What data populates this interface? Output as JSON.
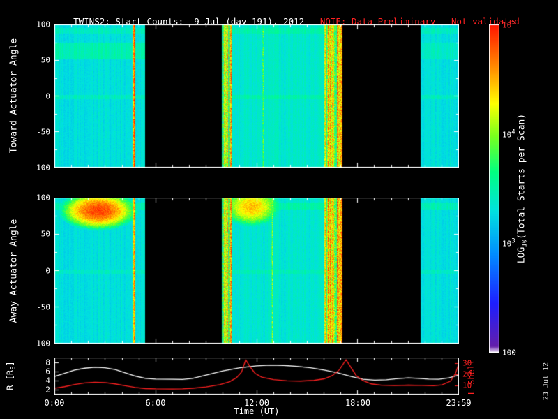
{
  "title": {
    "main": "TWINS2: Start Counts:  9 Jul (day 191), 2012   ",
    "note": "NOTE: Data Preliminary - Not validated",
    "note_color": "#ff2121"
  },
  "time_axis": {
    "label": "Time (UT)",
    "range_hours": [
      0,
      24
    ],
    "ticks": [
      {
        "hour": 0,
        "label": "0:00"
      },
      {
        "hour": 6,
        "label": "6:00"
      },
      {
        "hour": 12,
        "label": "12:00"
      },
      {
        "hour": 18,
        "label": "18:00"
      },
      {
        "hour": 23.983,
        "label": "23:59"
      }
    ]
  },
  "colorbar": {
    "label_prefix": "LOG",
    "label_sub": "10",
    "label_suffix": "(Total Starts per Scan)",
    "range_log10": [
      2,
      5
    ],
    "ticks": [
      {
        "base": "10",
        "exp": "5",
        "value": 5,
        "color": "#ff3131"
      },
      {
        "base": "10",
        "exp": "4",
        "value": 4,
        "color": "#ffffff"
      },
      {
        "base": "10",
        "exp": "3",
        "value": 3,
        "color": "#ffffff"
      },
      {
        "base": "100",
        "exp": "",
        "value": 2,
        "color": "#ffffff"
      }
    ]
  },
  "date_stamp": "23 Jul 12",
  "chart_data": [
    {
      "type": "heatmap",
      "name": "toward-actuator",
      "ylabel": "Toward Actuator Angle",
      "ylim": [
        -100,
        100
      ],
      "yticks": [
        100,
        50,
        0,
        -50,
        -100
      ],
      "x_hours": [
        0,
        24
      ],
      "value_units": "log10 total starts per scan",
      "base_level": 3.3,
      "segments": [
        [
          0.0,
          5.35
        ],
        [
          9.93,
          17.05
        ],
        [
          21.7,
          24.0
        ]
      ],
      "stripes": [
        {
          "t0": 4.62,
          "t1": 4.8,
          "min": 4.2,
          "max": 4.8
        },
        {
          "t0": 9.93,
          "t1": 10.5,
          "min": 3.4,
          "max": 4.7
        },
        {
          "t0": 12.3,
          "t1": 12.42,
          "min": 3.5,
          "max": 4.0
        },
        {
          "t0": 16.0,
          "t1": 17.05,
          "min": 3.6,
          "max": 4.9
        }
      ],
      "bands": [
        {
          "t0": 0,
          "t1": 5.35,
          "a0": 52,
          "a1": 75,
          "boost": 0.18
        },
        {
          "t0": 0,
          "t1": 24,
          "a0": -4,
          "a1": 2,
          "boost": 0.12
        },
        {
          "t0": 0,
          "t1": 24,
          "a0": 88,
          "a1": 96,
          "boost": 0.12
        },
        {
          "t0": 21.7,
          "t1": 24,
          "a0": 52,
          "a1": 75,
          "boost": 0.1
        },
        {
          "t0": 9.93,
          "t1": 17.05,
          "a0": -100,
          "a1": 100,
          "boost": 0.07
        }
      ],
      "blobs": []
    },
    {
      "type": "heatmap",
      "name": "away-actuator",
      "ylabel": "Away Actuator Angle",
      "ylim": [
        -100,
        100
      ],
      "yticks": [
        100,
        50,
        0,
        -50,
        -100
      ],
      "x_hours": [
        0,
        24
      ],
      "value_units": "log10 total starts per scan",
      "base_level": 3.3,
      "segments": [
        [
          0.0,
          5.35
        ],
        [
          9.93,
          17.05
        ],
        [
          21.7,
          24.0
        ]
      ],
      "stripes": [
        {
          "t0": 4.62,
          "t1": 4.8,
          "min": 4.0,
          "max": 4.6
        },
        {
          "t0": 9.93,
          "t1": 10.5,
          "min": 3.5,
          "max": 4.7
        },
        {
          "t0": 12.85,
          "t1": 12.95,
          "min": 3.6,
          "max": 4.2
        },
        {
          "t0": 16.0,
          "t1": 17.05,
          "min": 3.7,
          "max": 4.95
        }
      ],
      "bands": [
        {
          "t0": 0,
          "t1": 24,
          "a0": -4,
          "a1": 2,
          "boost": 0.1
        },
        {
          "t0": 0,
          "t1": 24,
          "a0": 84,
          "a1": 94,
          "boost": 0.15
        },
        {
          "t0": 9.93,
          "t1": 17.05,
          "a0": -100,
          "a1": 100,
          "boost": 0.05
        }
      ],
      "blobs": [
        {
          "t0": 0.2,
          "t1": 5.0,
          "a0": 55,
          "a1": 110,
          "level": 4.85
        },
        {
          "t0": 9.93,
          "t1": 13.4,
          "a0": 60,
          "a1": 115,
          "level": 4.45
        }
      ]
    },
    {
      "type": "line",
      "name": "orbit",
      "left_axis": {
        "label_prefix": "R [R",
        "label_sub": "E",
        "label_suffix": "]",
        "ticks": [
          8,
          6,
          4,
          2
        ],
        "range": [
          1,
          9
        ],
        "color": "#ffffff"
      },
      "right_axis": {
        "label": "L Shell",
        "ticks": [
          30,
          20,
          10
        ],
        "range": [
          2,
          35
        ],
        "color": "#ff2121"
      },
      "series": [
        {
          "name": "R",
          "axis": "left",
          "color": "#ffffff",
          "points": [
            [
              0,
              4.9
            ],
            [
              0.6,
              5.6
            ],
            [
              1.2,
              6.3
            ],
            [
              1.8,
              6.7
            ],
            [
              2.4,
              6.9
            ],
            [
              3,
              6.8
            ],
            [
              3.6,
              6.4
            ],
            [
              4.2,
              5.7
            ],
            [
              4.8,
              5.0
            ],
            [
              5.4,
              4.5
            ],
            [
              6,
              4.35
            ],
            [
              7,
              4.3
            ],
            [
              7.6,
              4.25
            ],
            [
              8.2,
              4.5
            ],
            [
              9,
              5.2
            ],
            [
              10,
              6.1
            ],
            [
              11,
              6.8
            ],
            [
              12,
              7.2
            ],
            [
              12.8,
              7.35
            ],
            [
              13.6,
              7.3
            ],
            [
              14.4,
              7.1
            ],
            [
              15.2,
              6.8
            ],
            [
              16,
              6.3
            ],
            [
              16.8,
              5.7
            ],
            [
              17.6,
              4.9
            ],
            [
              18.3,
              4.3
            ],
            [
              19,
              4.1
            ],
            [
              19.7,
              4.2
            ],
            [
              20.4,
              4.45
            ],
            [
              21,
              4.6
            ],
            [
              21.6,
              4.5
            ],
            [
              22.2,
              4.35
            ],
            [
              22.8,
              4.3
            ],
            [
              23.4,
              4.6
            ],
            [
              24,
              5.2
            ]
          ]
        },
        {
          "name": "L Shell",
          "axis": "right",
          "color": "#ff2121",
          "points": [
            [
              0,
              7.5
            ],
            [
              0.6,
              9
            ],
            [
              1.2,
              11
            ],
            [
              1.8,
              12.3
            ],
            [
              2.4,
              13
            ],
            [
              3,
              12.7
            ],
            [
              3.6,
              11.5
            ],
            [
              4.2,
              9.8
            ],
            [
              4.8,
              8.3
            ],
            [
              5.4,
              7.3
            ],
            [
              6,
              7
            ],
            [
              7,
              6.9
            ],
            [
              7.6,
              7
            ],
            [
              8.2,
              7.6
            ],
            [
              9,
              8.8
            ],
            [
              9.8,
              10.8
            ],
            [
              10.4,
              13.5
            ],
            [
              10.8,
              17
            ],
            [
              11.1,
              22
            ],
            [
              11.35,
              33
            ],
            [
              11.6,
              27
            ],
            [
              11.9,
              21
            ],
            [
              12.3,
              17.5
            ],
            [
              13,
              15.3
            ],
            [
              13.8,
              14.2
            ],
            [
              14.6,
              14
            ],
            [
              15.4,
              14.6
            ],
            [
              16,
              16
            ],
            [
              16.5,
              19
            ],
            [
              16.9,
              24
            ],
            [
              17.3,
              33
            ],
            [
              17.6,
              26
            ],
            [
              17.9,
              19
            ],
            [
              18.3,
              14.5
            ],
            [
              18.8,
              11.5
            ],
            [
              19.4,
              10.3
            ],
            [
              20.2,
              10
            ],
            [
              21,
              10.4
            ],
            [
              21.8,
              10.2
            ],
            [
              22.5,
              9.8
            ],
            [
              23,
              10.6
            ],
            [
              23.5,
              14
            ],
            [
              23.8,
              21
            ],
            [
              24,
              30
            ]
          ]
        }
      ]
    }
  ]
}
